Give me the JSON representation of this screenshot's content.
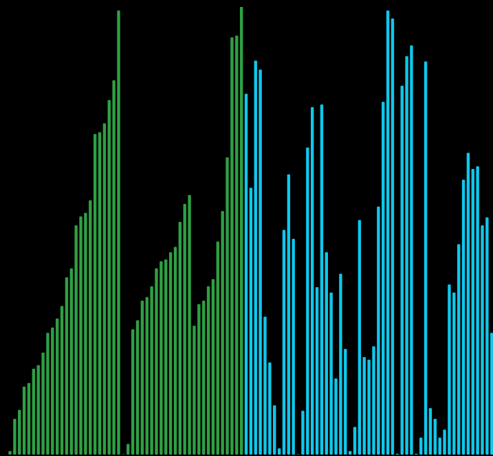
{
  "chart_data": {
    "type": "bar",
    "ylim": [
      0,
      100
    ],
    "grid": false,
    "legend": "none",
    "colors": {
      "background": "#000000",
      "series_a": "#2ea043",
      "series_b": "#0ec8ec"
    },
    "series": [
      {
        "color": "#2ea043",
        "values": [
          0.8,
          8.0,
          10.0,
          15.2,
          16.0,
          19.2,
          20.0,
          22.8,
          27.2,
          28.4,
          30.4,
          33.2,
          39.6,
          41.6,
          51.2,
          53.2,
          54.0,
          56.8,
          71.6,
          72.0,
          74.0,
          79.2,
          83.6,
          99.2,
          0.0,
          2.4,
          28.0,
          30.0,
          34.4,
          35.2,
          37.6,
          41.6,
          43.2,
          43.6,
          45.2,
          46.4,
          52.0,
          56.0,
          58.0,
          28.8,
          33.6,
          34.4,
          37.6,
          39.2,
          47.6,
          54.4,
          66.4,
          93.2,
          93.6,
          100.0
        ]
      },
      {
        "color": "#0ec8ec",
        "values": [
          80.6,
          59.6,
          88.0,
          86.0,
          30.8,
          20.6,
          11.0,
          1.4,
          50.2,
          62.6,
          48.2,
          0.0,
          9.8,
          68.6,
          77.6,
          37.4,
          78.2,
          45.2,
          36.2,
          17.0,
          40.4,
          23.6,
          0.8,
          6.2,
          52.4,
          21.8,
          21.2,
          24.2,
          55.4,
          78.8,
          99.2,
          97.4,
          0.2,
          82.4,
          89.0,
          91.4,
          0.2,
          3.8,
          87.8,
          10.4,
          8.0,
          3.8,
          5.6,
          38.0,
          36.2,
          47.0,
          61.4,
          67.4,
          63.8,
          64.4,
          51.2,
          53.0,
          27.2
        ]
      }
    ]
  }
}
